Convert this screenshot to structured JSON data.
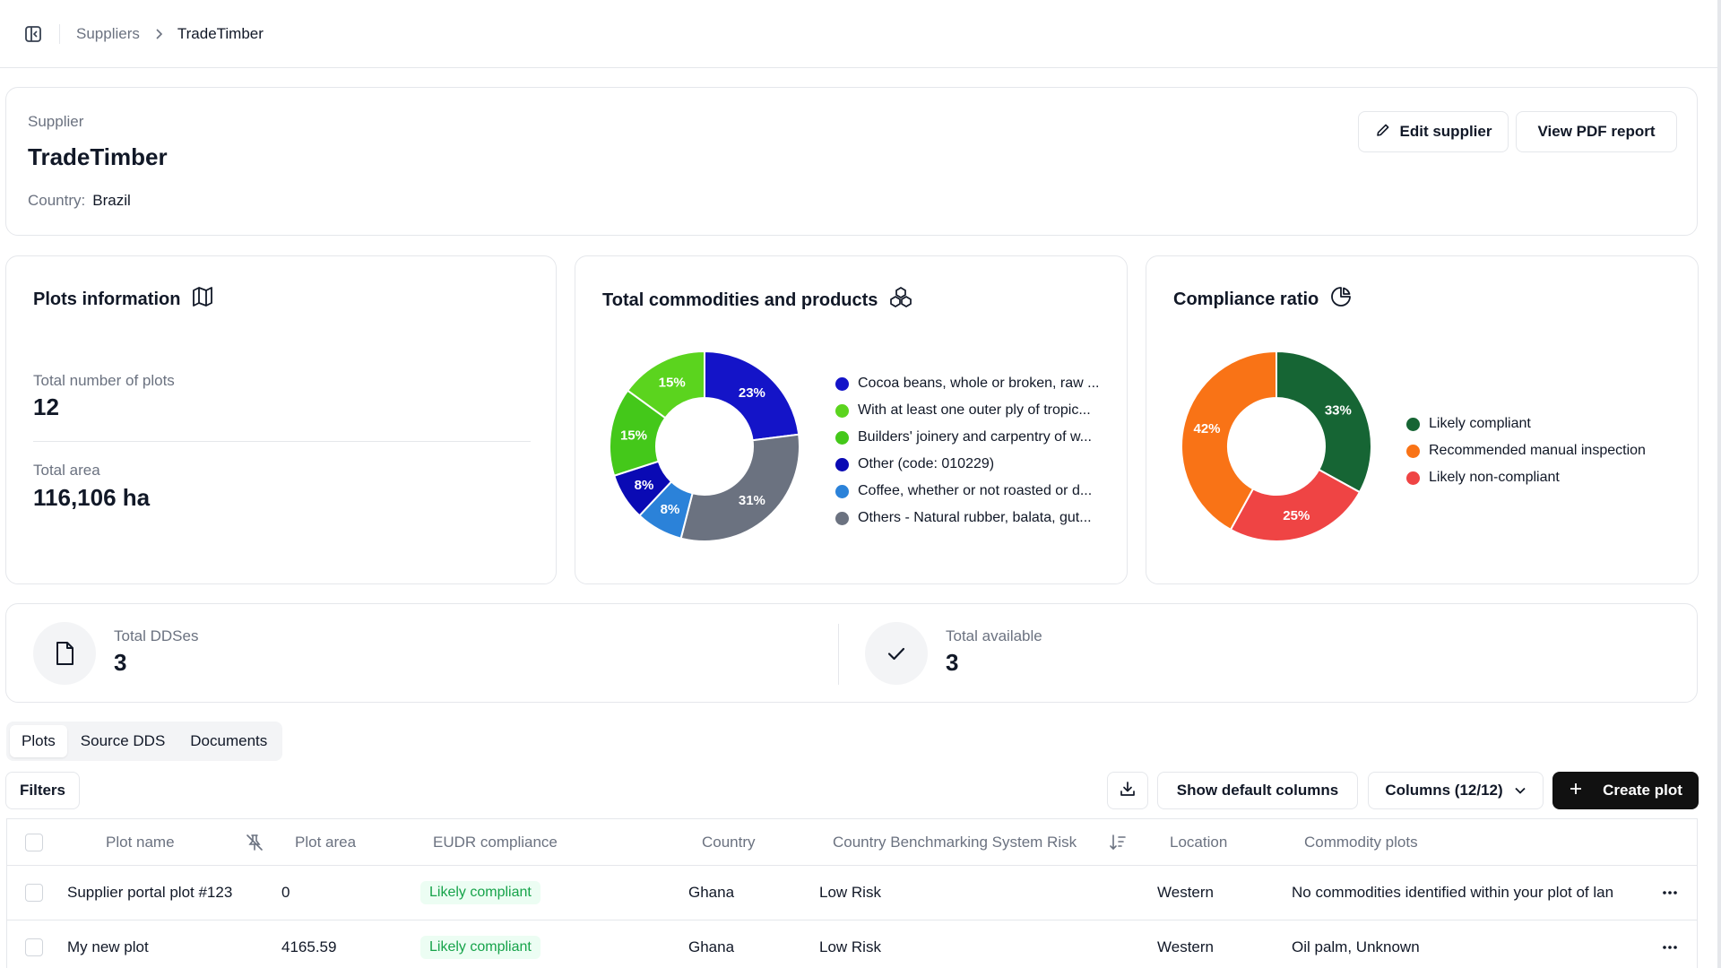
{
  "breadcrumb": {
    "parent": "Suppliers",
    "current": "TradeTimber"
  },
  "supplier": {
    "label": "Supplier",
    "name": "TradeTimber",
    "country_label": "Country:",
    "country_value": "Brazil",
    "edit_label": "Edit supplier",
    "pdf_label": "View PDF report"
  },
  "plots_info": {
    "title": "Plots information",
    "total_plots_label": "Total number of plots",
    "total_plots_value": "12",
    "total_area_label": "Total area",
    "total_area_value": "116,106 ha"
  },
  "commodities": {
    "title": "Total commodities and products",
    "legend": [
      "Cocoa beans, whole or broken, raw ...",
      "With at least one outer ply of tropic...",
      "Builders' joinery and carpentry of w...",
      "Other (code: 010229)",
      "Coffee, whether or not roasted or d...",
      "Others - Natural rubber, balata, gut..."
    ]
  },
  "compliance": {
    "title": "Compliance ratio",
    "legend": [
      "Likely compliant",
      "Recommended manual inspection",
      "Likely non-compliant"
    ]
  },
  "chart_data": [
    {
      "type": "pie",
      "title": "Total commodities and products",
      "labels": [
        "Cocoa beans, whole or broken, raw ...",
        "Others - Natural rubber, balata, gut...",
        "Coffee, whether or not roasted or d...",
        "Other (code: 010229)",
        "Builders' joinery and carpentry of w...",
        "With at least one outer ply of tropic..."
      ],
      "values": [
        23,
        31,
        8,
        8,
        15,
        15
      ],
      "value_labels": [
        "23%",
        "31%",
        "8%",
        "8%",
        "15%",
        "15%"
      ],
      "colors": [
        "#1414c8",
        "#6b7280",
        "#2b82d9",
        "#0a0ab4",
        "#44c81a",
        "#5bd41e"
      ],
      "legend_colors": [
        "#1414c8",
        "#5bd41e",
        "#44c81a",
        "#0a0ab4",
        "#2b82d9",
        "#6b7280"
      ],
      "donut": true,
      "legend": "right"
    },
    {
      "type": "pie",
      "title": "Compliance ratio",
      "labels": [
        "Likely compliant",
        "Likely non-compliant",
        "Recommended manual inspection"
      ],
      "values": [
        33,
        25,
        42
      ],
      "value_labels": [
        "33%",
        "25%",
        "42%"
      ],
      "colors": [
        "#166534",
        "#ef4444",
        "#f97316"
      ],
      "legend_colors": [
        "#166534",
        "#f97316",
        "#ef4444"
      ],
      "donut": true,
      "legend": "right"
    }
  ],
  "dds": {
    "total_label": "Total DDSes",
    "total_value": "3",
    "available_label": "Total available",
    "available_value": "3"
  },
  "tabs": [
    "Plots",
    "Source DDS",
    "Documents"
  ],
  "toolbar": {
    "filters": "Filters",
    "show_default": "Show default columns",
    "columns": "Columns (12/12)",
    "create": "Create plot"
  },
  "table": {
    "headers": [
      "Plot name",
      "Plot area",
      "EUDR compliance",
      "Country",
      "Country Benchmarking System Risk",
      "Location",
      "Commodity plots"
    ],
    "rows": [
      {
        "name": "Supplier portal plot #123",
        "area": "0",
        "compliance": "Likely compliant",
        "country": "Ghana",
        "risk": "Low Risk",
        "location": "Western",
        "commodity": "No commodities identified within your plot of lan"
      },
      {
        "name": "My new plot",
        "area": "4165.59",
        "compliance": "Likely compliant",
        "country": "Ghana",
        "risk": "Low Risk",
        "location": "Western",
        "commodity": "Oil palm, Unknown"
      }
    ]
  }
}
